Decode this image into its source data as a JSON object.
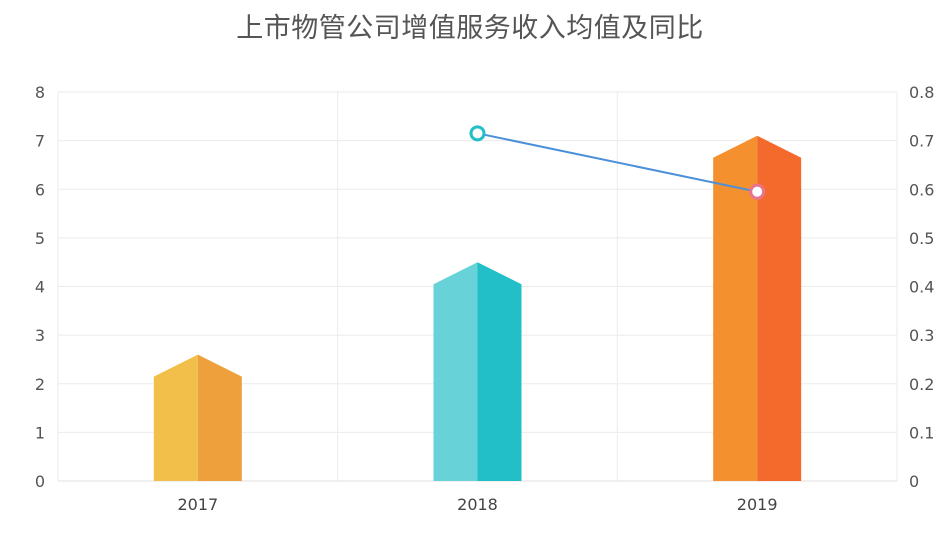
{
  "chart_data": {
    "type": "bar",
    "title": "上市物管公司增值服务收入均值及同比",
    "categories": [
      "2017",
      "2018",
      "2019"
    ],
    "series": [
      {
        "type": "bar",
        "values": [
          2.6,
          4.5,
          7.1
        ],
        "axis": "left",
        "colors": [
          [
            "#f2bf4a",
            "#eda03c"
          ],
          [
            "#67d3d8",
            "#22bfc9"
          ],
          [
            "#f5902f",
            "#f46a2c"
          ]
        ]
      },
      {
        "type": "line",
        "values": [
          null,
          0.715,
          0.595
        ],
        "axis": "right",
        "color": "#4a90d9",
        "marker_colors": [
          null,
          "#22bfc9",
          "#e8738f"
        ]
      }
    ],
    "y_left": {
      "min": 0,
      "max": 8,
      "ticks": [
        "0",
        "1",
        "2",
        "3",
        "4",
        "5",
        "6",
        "7",
        "8"
      ]
    },
    "y_right": {
      "min": 0,
      "max": 0.8,
      "ticks": [
        "0",
        "0.1",
        "0.2",
        "0.3",
        "0.4",
        "0.5",
        "0.6",
        "0.7",
        "0.8"
      ]
    },
    "grid": true
  }
}
